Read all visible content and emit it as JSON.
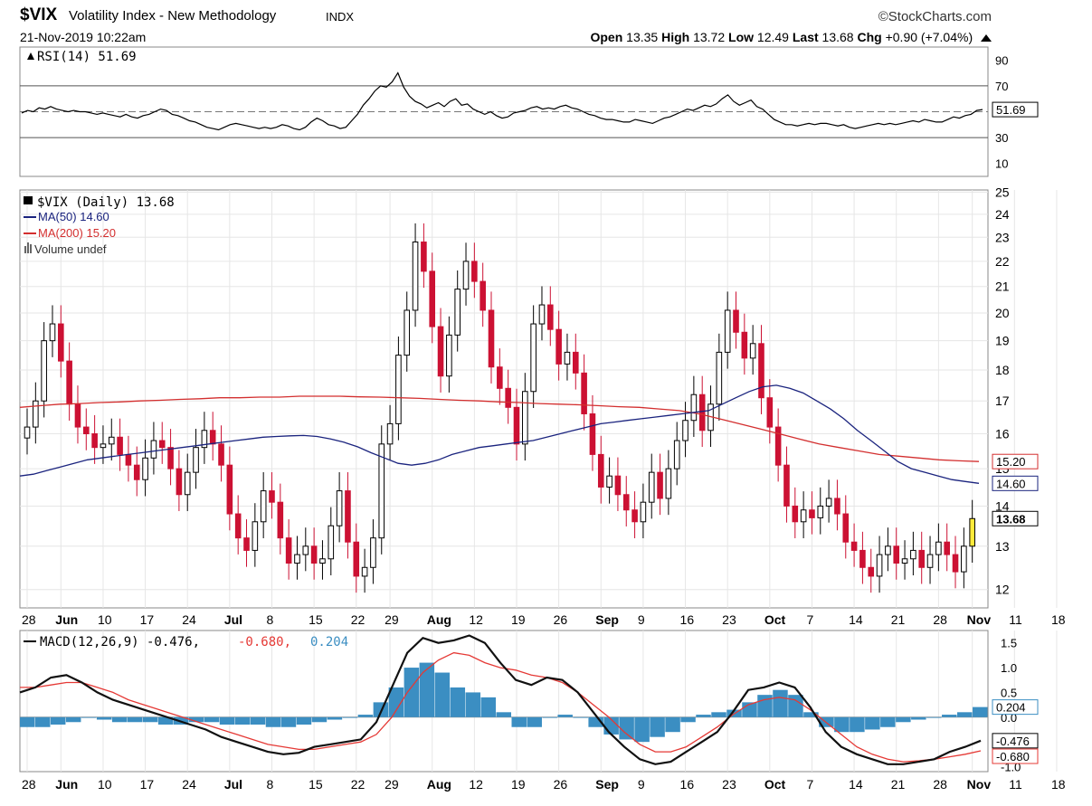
{
  "header": {
    "symbol": "$VIX",
    "name": "Volatility Index - New Methodology",
    "exchange": "INDX",
    "source": "©StockCharts.com",
    "datetime": "21-Nov-2019 10:22am",
    "open_label": "Open",
    "open": "13.35",
    "high_label": "High",
    "high": "13.72",
    "low_label": "Low",
    "low": "12.49",
    "last_label": "Last",
    "last": "13.68",
    "chg_label": "Chg",
    "chg": "+0.90 (+7.04%)"
  },
  "colors": {
    "up": "#000000",
    "down": "#cc1133",
    "ma50": "#1a237e",
    "ma200": "#d32f2f",
    "macd": "#111111",
    "signal": "#e53935",
    "histogram": "#3b8ec2",
    "highlight": "#ffeb3b"
  },
  "chart_data": [
    {
      "type": "line",
      "panel": "RSI",
      "legend": "RSI(14) 51.69",
      "value_label": "51.69",
      "ylim": [
        0,
        100
      ],
      "yticks": [
        "90",
        "70",
        "50",
        "30",
        "10"
      ],
      "ytick_values": [
        90,
        70,
        50,
        30,
        10
      ],
      "reference_lines": [
        70,
        50,
        30
      ],
      "values": [
        49,
        51,
        50,
        53,
        52,
        54,
        52,
        51,
        50,
        51,
        50,
        50,
        49,
        48,
        49,
        48,
        47,
        46,
        48,
        46,
        45,
        47,
        48,
        50,
        52,
        51,
        48,
        47,
        45,
        43,
        42,
        40,
        38,
        37,
        36,
        38,
        40,
        41,
        40,
        39,
        38,
        37,
        38,
        37,
        38,
        40,
        39,
        37,
        36,
        38,
        42,
        45,
        43,
        40,
        39,
        37,
        38,
        43,
        48,
        55,
        60,
        66,
        70,
        69,
        73,
        80,
        69,
        62,
        58,
        56,
        53,
        55,
        57,
        54,
        58,
        60,
        55,
        56,
        52,
        50,
        48,
        50,
        47,
        45,
        46,
        49,
        50,
        51,
        53,
        54,
        52,
        53,
        52,
        54,
        55,
        53,
        52,
        50,
        48,
        47,
        45,
        44,
        44,
        43,
        42,
        42,
        44,
        43,
        42,
        41,
        43,
        45,
        46,
        48,
        50,
        52,
        51,
        53,
        55,
        54,
        56,
        60,
        63,
        58,
        55,
        57,
        59,
        54,
        52,
        48,
        44,
        42,
        40,
        40,
        39,
        40,
        41,
        40,
        41,
        41,
        40,
        39,
        40,
        38,
        37,
        38,
        39,
        40,
        41,
        40,
        41,
        40,
        41,
        42,
        43,
        42,
        44,
        43,
        42,
        42,
        44,
        46,
        45,
        47,
        48,
        51,
        51.69
      ]
    },
    {
      "type": "candlestick",
      "panel": "price",
      "legend_main": "$VIX (Daily) 13.68",
      "legend_ma50": "MA(50) 14.60",
      "legend_ma200": "MA(200) 15.20",
      "legend_volume": "Volume undef",
      "ylim": [
        11.6,
        25.1
      ],
      "log_scale": true,
      "yticks": [
        "25",
        "24",
        "23",
        "22",
        "21",
        "20",
        "19",
        "18",
        "17",
        "16",
        "15",
        "14",
        "13",
        "12"
      ],
      "ytick_values": [
        25,
        24,
        23,
        22,
        21,
        20,
        19,
        18,
        17,
        16,
        15,
        14,
        13,
        12
      ],
      "last_label": "13.68",
      "ma50_label": "14.60",
      "ma200_label": "15.20",
      "xticks": [
        "28",
        "Jun",
        "10",
        "17",
        "24",
        "Jul",
        "8",
        "15",
        "22",
        "29",
        "Aug",
        "12",
        "19",
        "26",
        "Sep",
        "9",
        "16",
        "23",
        "Oct",
        "7",
        "14",
        "21",
        "28",
        "Nov",
        "11",
        "18"
      ],
      "xtick_bold": [
        false,
        true,
        false,
        false,
        false,
        true,
        false,
        false,
        false,
        false,
        true,
        false,
        false,
        false,
        true,
        false,
        false,
        false,
        true,
        false,
        false,
        false,
        false,
        true,
        false,
        false
      ],
      "xtick_index": [
        0,
        4,
        9,
        14,
        19,
        24,
        29,
        34,
        39,
        43,
        48,
        53,
        58,
        63,
        68,
        73,
        78,
        83,
        88,
        93,
        98,
        103,
        108,
        112,
        117,
        122
      ],
      "close": [
        16.2,
        17.0,
        19.0,
        19.6,
        18.3,
        16.9,
        16.2,
        16.0,
        15.6,
        15.7,
        15.9,
        15.4,
        15.1,
        14.7,
        15.3,
        15.8,
        15.6,
        15.0,
        14.3,
        14.9,
        15.6,
        16.1,
        15.7,
        15.1,
        13.8,
        13.2,
        12.9,
        13.6,
        14.4,
        14.1,
        13.2,
        12.6,
        12.8,
        13.0,
        12.6,
        12.7,
        13.5,
        14.4,
        13.1,
        12.3,
        12.5,
        13.2,
        15.7,
        16.3,
        18.5,
        20.1,
        22.8,
        21.6,
        19.5,
        17.8,
        19.2,
        20.9,
        22.0,
        21.2,
        20.1,
        18.1,
        17.4,
        16.8,
        15.7,
        17.3,
        19.6,
        20.3,
        19.4,
        18.2,
        18.6,
        17.9,
        16.6,
        15.4,
        14.5,
        14.8,
        14.3,
        13.9,
        13.6,
        14.1,
        14.9,
        14.2,
        15.0,
        15.8,
        16.4,
        17.2,
        16.1,
        16.9,
        18.6,
        20.1,
        19.3,
        18.4,
        18.9,
        17.1,
        16.2,
        15.1,
        14.0,
        13.6,
        13.9,
        13.7,
        14.0,
        14.2,
        13.8,
        13.1,
        12.9,
        12.5,
        12.3,
        12.8,
        13.0,
        12.6,
        12.7,
        12.9,
        12.5,
        12.8,
        13.1,
        12.8,
        12.4,
        13.0,
        13.68
      ],
      "ma50": [
        14.8,
        14.85,
        14.95,
        15.05,
        15.15,
        15.25,
        15.3,
        15.35,
        15.4,
        15.45,
        15.5,
        15.55,
        15.6,
        15.65,
        15.7,
        15.75,
        15.8,
        15.85,
        15.9,
        15.92,
        15.94,
        15.95,
        15.92,
        15.85,
        15.75,
        15.62,
        15.45,
        15.3,
        15.15,
        15.1,
        15.15,
        15.25,
        15.4,
        15.5,
        15.6,
        15.65,
        15.7,
        15.75,
        15.8,
        15.9,
        16.0,
        16.1,
        16.2,
        16.3,
        16.35,
        16.4,
        16.45,
        16.5,
        16.55,
        16.6,
        16.65,
        16.7,
        16.9,
        17.1,
        17.3,
        17.45,
        17.5,
        17.4,
        17.25,
        17.0,
        16.75,
        16.45,
        16.1,
        15.8,
        15.5,
        15.2,
        15.0,
        14.9,
        14.8,
        14.7,
        14.65,
        14.6
      ],
      "ma200": [
        16.8,
        16.85,
        16.9,
        16.92,
        16.95,
        16.97,
        17.0,
        17.02,
        17.05,
        17.07,
        17.1,
        17.1,
        17.12,
        17.12,
        17.15,
        17.15,
        17.15,
        17.13,
        17.12,
        17.1,
        17.08,
        17.05,
        17.02,
        17.0,
        16.97,
        16.95,
        16.92,
        16.9,
        16.88,
        16.85,
        16.82,
        16.8,
        16.75,
        16.7,
        16.6,
        16.45,
        16.3,
        16.15,
        16.0,
        15.85,
        15.7,
        15.6,
        15.5,
        15.4,
        15.35,
        15.3,
        15.25,
        15.22,
        15.2
      ]
    },
    {
      "type": "line",
      "panel": "MACD",
      "legend": "MACD(12,26,9) -0.476,",
      "legend_signal": "-0.680,",
      "legend_hist": "0.204",
      "ylim": [
        -1.1,
        1.75
      ],
      "yticks": [
        "1.5",
        "1.0",
        "0.5",
        "0.0",
        "-0.5",
        "-1.0"
      ],
      "ytick_values": [
        1.5,
        1.0,
        0.5,
        0.0,
        -0.5,
        -1.0
      ],
      "value_labels": [
        "0.204",
        "-0.476",
        "-0.680"
      ],
      "xticks": [
        "28",
        "Jun",
        "10",
        "17",
        "24",
        "Jul",
        "8",
        "15",
        "22",
        "29",
        "Aug",
        "12",
        "19",
        "26",
        "Sep",
        "9",
        "16",
        "23",
        "Oct",
        "7",
        "14",
        "21",
        "28",
        "Nov",
        "11",
        "18"
      ],
      "macd": [
        0.5,
        0.6,
        0.8,
        0.85,
        0.7,
        0.5,
        0.35,
        0.25,
        0.15,
        0.05,
        -0.05,
        -0.15,
        -0.25,
        -0.4,
        -0.5,
        -0.6,
        -0.7,
        -0.75,
        -0.72,
        -0.6,
        -0.55,
        -0.5,
        -0.45,
        -0.1,
        0.6,
        1.3,
        1.6,
        1.5,
        1.55,
        1.65,
        1.5,
        1.1,
        0.75,
        0.65,
        0.8,
        0.75,
        0.5,
        0.1,
        -0.3,
        -0.6,
        -0.85,
        -0.95,
        -0.9,
        -0.7,
        -0.5,
        -0.3,
        0.1,
        0.55,
        0.6,
        0.7,
        0.6,
        0.2,
        -0.3,
        -0.6,
        -0.75,
        -0.85,
        -0.95,
        -0.95,
        -0.9,
        -0.85,
        -0.7,
        -0.6,
        -0.476
      ],
      "signal": [
        0.6,
        0.6,
        0.65,
        0.7,
        0.7,
        0.6,
        0.5,
        0.35,
        0.25,
        0.15,
        0.05,
        -0.05,
        -0.15,
        -0.25,
        -0.35,
        -0.45,
        -0.55,
        -0.6,
        -0.65,
        -0.65,
        -0.6,
        -0.55,
        -0.5,
        -0.35,
        0.0,
        0.5,
        0.9,
        1.15,
        1.3,
        1.25,
        1.1,
        1.0,
        0.95,
        0.85,
        0.8,
        0.7,
        0.5,
        0.25,
        0.0,
        -0.3,
        -0.55,
        -0.7,
        -0.7,
        -0.6,
        -0.4,
        -0.2,
        0.05,
        0.25,
        0.35,
        0.4,
        0.35,
        0.15,
        -0.1,
        -0.35,
        -0.6,
        -0.75,
        -0.85,
        -0.9,
        -0.88,
        -0.85,
        -0.8,
        -0.75,
        -0.68
      ],
      "histogram": [
        -0.2,
        -0.2,
        -0.15,
        -0.1,
        0.0,
        -0.05,
        -0.1,
        -0.1,
        -0.1,
        -0.15,
        -0.15,
        -0.1,
        -0.1,
        -0.15,
        -0.15,
        -0.15,
        -0.2,
        -0.2,
        -0.15,
        -0.1,
        -0.05,
        0.0,
        0.05,
        0.3,
        0.6,
        1.0,
        1.1,
        0.9,
        0.6,
        0.5,
        0.4,
        0.1,
        -0.2,
        -0.2,
        0.0,
        0.05,
        0.0,
        -0.2,
        -0.35,
        -0.45,
        -0.5,
        -0.4,
        -0.3,
        -0.1,
        0.05,
        0.1,
        0.15,
        0.3,
        0.45,
        0.55,
        0.45,
        0.1,
        -0.2,
        -0.3,
        -0.3,
        -0.25,
        -0.2,
        -0.1,
        -0.05,
        0.0,
        0.05,
        0.1,
        0.204
      ]
    }
  ]
}
